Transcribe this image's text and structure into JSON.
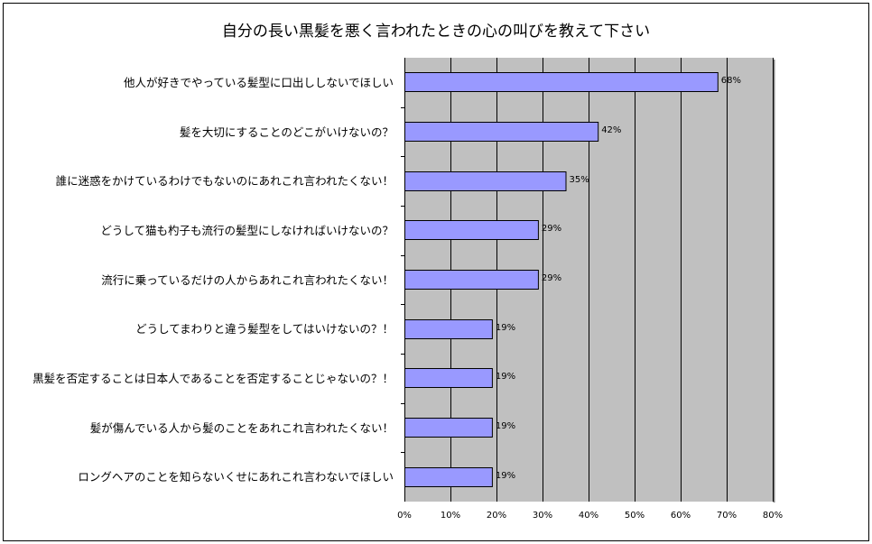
{
  "chart_data": {
    "type": "bar",
    "orientation": "horizontal",
    "title": "自分の長い黒髪を悪く言われたときの心の叫びを教えて下さい",
    "categories": [
      "他人が好きでやっている髪型に口出ししないでほしい",
      "髪を大切にすることのどこがいけないの？",
      "誰に迷惑をかけているわけでもないのにあれこれ言われたくない！",
      "どうして猫も杓子も流行の髪型にしなければいけないの？",
      "流行に乗っているだけの人からあれこれ言われたくない！",
      "どうしてまわりと違う髪型をしてはいけないの？！",
      "黒髪を否定することは日本人であることを否定することじゃないの？！",
      "髪が傷んでいる人から髪のことをあれこれ言われたくない！",
      "ロングヘアのことを知らないくせにあれこれ言わないでほしい"
    ],
    "values": [
      68,
      42,
      35,
      29,
      29,
      19,
      19,
      19,
      19
    ],
    "data_labels": [
      "68%",
      "42%",
      "35%",
      "29%",
      "29%",
      "19%",
      "19%",
      "19%",
      "19%"
    ],
    "xlim": [
      0,
      80
    ],
    "xticks": [
      "0%",
      "10%",
      "20%",
      "30%",
      "40%",
      "50%",
      "60%",
      "70%",
      "80%"
    ],
    "grid": true,
    "legend": "none",
    "colors": {
      "bar": "#9999ff",
      "plot_bg": "#c0c0c0"
    }
  }
}
